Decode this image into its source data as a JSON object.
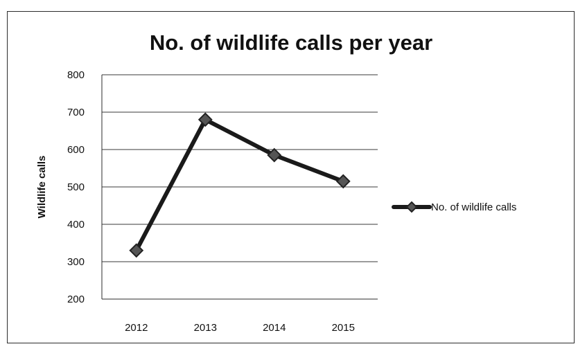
{
  "chart_data": {
    "type": "line",
    "title": "No. of wildlife calls per year",
    "xlabel": "",
    "ylabel": "Wildlife calls",
    "categories": [
      "2012",
      "2013",
      "2014",
      "2015"
    ],
    "series": [
      {
        "name": "No. of wildlife calls",
        "values": [
          330,
          680,
          585,
          515
        ]
      }
    ],
    "ylim": [
      200,
      800
    ],
    "yticks": [
      200,
      300,
      400,
      500,
      600,
      700,
      800
    ],
    "grid": true,
    "legend": "right",
    "colors": {
      "line": "#1a1a1a",
      "grid": "#3a3a3a",
      "axis": "#2b2b2b"
    }
  }
}
